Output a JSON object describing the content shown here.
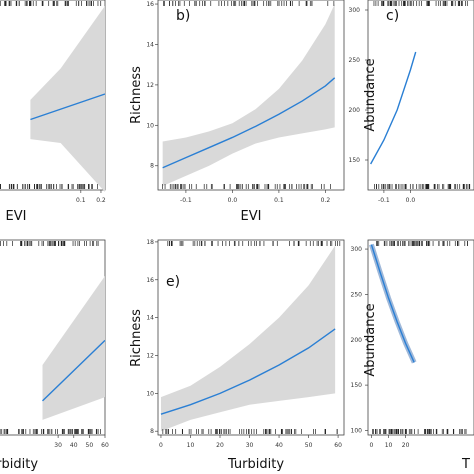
{
  "chart_data": [
    {
      "type": "line",
      "panel_label": "",
      "xlabel": "EVI",
      "ylabel": "",
      "x_ticks": [
        "0.1",
        "0.2"
      ],
      "series": [
        {
          "x": [
            -0.15,
            0.22
          ],
          "y": [
            10.2,
            11.5
          ]
        }
      ],
      "ci_upper": [
        [
          -0.15,
          11.2
        ],
        [
          0.0,
          12.8
        ],
        [
          0.22,
          16.0
        ]
      ],
      "ci_lower": [
        [
          -0.15,
          9.2
        ],
        [
          0.0,
          9.0
        ],
        [
          0.22,
          6.5
        ]
      ]
    },
    {
      "type": "line",
      "panel_label": "b)",
      "xlabel": "EVI",
      "ylabel": "Richness",
      "xlim": [
        -0.16,
        0.24
      ],
      "ylim": [
        6.8,
        16.2
      ],
      "x_ticks": [
        "-0.1",
        "0.0",
        "0.1",
        "0.2"
      ],
      "y_ticks": [
        "8",
        "10",
        "12",
        "14",
        "16"
      ],
      "series": [
        {
          "x": [
            -0.15,
            -0.1,
            -0.05,
            0.0,
            0.05,
            0.1,
            0.15,
            0.2,
            0.22
          ],
          "y": [
            7.9,
            8.4,
            8.9,
            9.4,
            9.95,
            10.55,
            11.2,
            11.95,
            12.35
          ]
        }
      ],
      "ci_upper": [
        [
          -0.15,
          9.2
        ],
        [
          -0.1,
          9.4
        ],
        [
          -0.05,
          9.7
        ],
        [
          0.0,
          10.1
        ],
        [
          0.05,
          10.8
        ],
        [
          0.1,
          11.8
        ],
        [
          0.15,
          13.2
        ],
        [
          0.2,
          15.0
        ],
        [
          0.22,
          16.0
        ]
      ],
      "ci_lower": [
        [
          -0.15,
          7.0
        ],
        [
          -0.1,
          7.5
        ],
        [
          -0.05,
          8.0
        ],
        [
          0.0,
          8.6
        ],
        [
          0.05,
          9.1
        ],
        [
          0.1,
          9.4
        ],
        [
          0.15,
          9.6
        ],
        [
          0.2,
          9.8
        ],
        [
          0.22,
          9.9
        ]
      ]
    },
    {
      "type": "line",
      "panel_label": "c)",
      "xlabel": "",
      "ylabel": "Abundance",
      "ylim": [
        120,
        310
      ],
      "x_ticks": [
        "-0.1",
        "0.0"
      ],
      "y_ticks": [
        "150",
        "200",
        "250",
        "300"
      ],
      "series": [
        {
          "x": [
            -0.15,
            -0.1,
            -0.05,
            0.0,
            0.02
          ],
          "y": [
            146,
            170,
            200,
            240,
            258
          ]
        }
      ]
    },
    {
      "type": "line",
      "panel_label": "",
      "xlabel": "Turbidity",
      "ylabel": "",
      "x_ticks": [
        "30",
        "40",
        "50",
        "60"
      ],
      "series": [
        {
          "x": [
            20,
            60
          ],
          "y": [
            9.6,
            12.8
          ]
        }
      ],
      "ci_upper": [
        [
          20,
          11.5
        ],
        [
          60,
          16.2
        ]
      ],
      "ci_lower": [
        [
          20,
          8.6
        ],
        [
          60,
          9.8
        ]
      ]
    },
    {
      "type": "line",
      "panel_label": "e)",
      "xlabel": "Turbidity",
      "ylabel": "Richness",
      "xlim": [
        -1,
        62
      ],
      "ylim": [
        7.8,
        18.1
      ],
      "x_ticks": [
        "0",
        "10",
        "20",
        "30",
        "40",
        "50",
        "60"
      ],
      "y_ticks": [
        "8",
        "10",
        "12",
        "14",
        "16",
        "18"
      ],
      "series": [
        {
          "x": [
            0,
            10,
            20,
            30,
            40,
            50,
            59
          ],
          "y": [
            8.9,
            9.4,
            10.0,
            10.7,
            11.5,
            12.4,
            13.4
          ]
        }
      ],
      "ci_upper": [
        [
          0,
          9.8
        ],
        [
          10,
          10.4
        ],
        [
          20,
          11.4
        ],
        [
          30,
          12.6
        ],
        [
          40,
          14.0
        ],
        [
          50,
          15.7
        ],
        [
          59,
          17.8
        ]
      ],
      "ci_lower": [
        [
          0,
          8.0
        ],
        [
          10,
          8.6
        ],
        [
          20,
          9.0
        ],
        [
          30,
          9.4
        ],
        [
          40,
          9.6
        ],
        [
          50,
          9.8
        ],
        [
          59,
          10.0
        ]
      ]
    },
    {
      "type": "line",
      "panel_label": "",
      "xlabel": "T",
      "ylabel": "Abundance",
      "ylim": [
        95,
        310
      ],
      "x_ticks": [
        "0",
        "10",
        "20"
      ],
      "y_ticks": [
        "100",
        "150",
        "200",
        "250",
        "300"
      ],
      "series": [
        {
          "x": [
            0,
            5,
            10,
            15,
            20,
            25
          ],
          "y": [
            305,
            275,
            246,
            220,
            196,
            175
          ]
        }
      ]
    }
  ]
}
